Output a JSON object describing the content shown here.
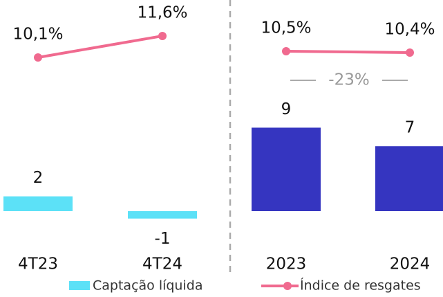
{
  "chart_data": [
    {
      "type": "bar",
      "categories": [
        "4T23",
        "4T24"
      ],
      "series": [
        {
          "name": "Captação líquida",
          "color": "#5ce1f7",
          "values": [
            2,
            -1
          ]
        },
        {
          "name": "Índice de resgates",
          "color": "#f06a8f",
          "type": "line",
          "axis": "y2",
          "values": [
            10.1,
            11.6
          ],
          "value_labels": [
            "10,1%",
            "11,6%"
          ]
        }
      ]
    },
    {
      "type": "bar",
      "categories": [
        "2023",
        "2024"
      ],
      "annotation": "-23%",
      "series": [
        {
          "color": "#3535c0",
          "values": [
            9,
            7
          ]
        },
        {
          "color": "#f06a8f",
          "type": "line",
          "axis": "y2",
          "values": [
            10.5,
            10.4
          ],
          "value_labels": [
            "10,5%",
            "10,4%"
          ]
        }
      ]
    }
  ]
}
